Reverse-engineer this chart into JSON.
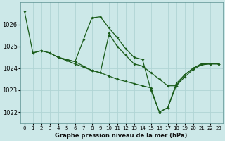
{
  "title": "Graphe pression niveau de la mer (hPa)",
  "background_color": "#cce8e8",
  "grid_color": "#b0d4d4",
  "line_color": "#1a5c1a",
  "xlim": [
    -0.5,
    23.5
  ],
  "ylim": [
    1021.5,
    1027.0
  ],
  "yticks": [
    1022,
    1023,
    1024,
    1025,
    1026
  ],
  "xticks": [
    0,
    1,
    2,
    3,
    4,
    5,
    6,
    7,
    8,
    9,
    10,
    11,
    12,
    13,
    14,
    15,
    16,
    17,
    18,
    19,
    20,
    21,
    22,
    23
  ],
  "series": [
    {
      "x": [
        0,
        1,
        2,
        3,
        4,
        5,
        6,
        7,
        8,
        9,
        10,
        11,
        12,
        13,
        14,
        15,
        16,
        17,
        18,
        19,
        20,
        21,
        22,
        23
      ],
      "y": [
        1026.6,
        1024.7,
        1024.8,
        1024.7,
        1024.5,
        1024.4,
        1024.3,
        1025.3,
        1026.3,
        1026.35,
        1025.85,
        1025.4,
        1024.9,
        1024.5,
        1024.4,
        1023.0,
        1022.0,
        1022.2,
        1023.3,
        1023.7,
        1024.0,
        1024.2,
        1024.2,
        1024.2
      ]
    },
    {
      "x": [
        1,
        2,
        3,
        4,
        5,
        6,
        7,
        8,
        9,
        10
      ],
      "y": [
        1024.7,
        1024.8,
        1024.7,
        1024.5,
        1024.4,
        1024.3,
        1024.1,
        1023.9,
        1023.8,
        1025.5
      ]
    },
    {
      "x": [
        4,
        5,
        6,
        7,
        8,
        9,
        10,
        11,
        12,
        13,
        14,
        15,
        16,
        17,
        18,
        19,
        20,
        21,
        22,
        23
      ],
      "y": [
        1024.5,
        1024.35,
        1024.2,
        1024.05,
        1023.9,
        1023.8,
        1023.65,
        1023.5,
        1023.4,
        1023.3,
        1023.2,
        1023.1,
        1022.0,
        1022.2,
        1023.2,
        1023.6,
        1023.95,
        1024.15,
        1024.2,
        1024.2
      ]
    },
    {
      "x": [
        10,
        11,
        12,
        13,
        14,
        15,
        16,
        17,
        18,
        19,
        20,
        21,
        22,
        23
      ],
      "y": [
        1025.6,
        1025.0,
        1024.6,
        1024.2,
        1024.1,
        1023.8,
        1023.5,
        1023.2,
        1023.2,
        1023.7,
        1024.0,
        1024.2,
        1024.2,
        1024.2
      ]
    }
  ]
}
